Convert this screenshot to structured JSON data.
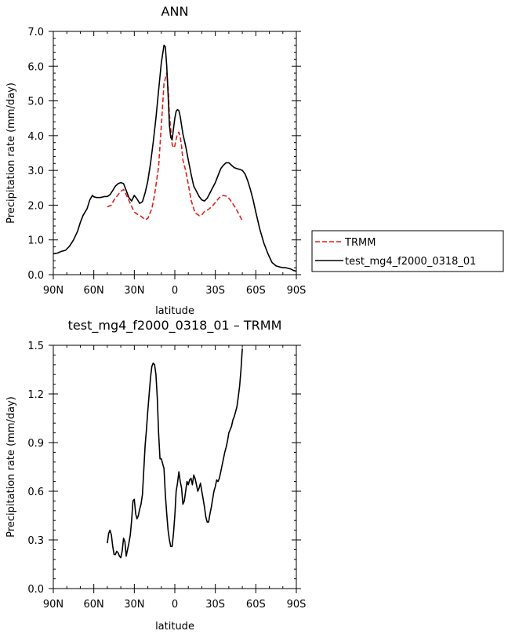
{
  "chart_data": [
    {
      "type": "line",
      "title": "ANN",
      "xlabel": "latitude",
      "ylabel": "Precipitation rate (mm/day)",
      "xlim": [
        90,
        -90
      ],
      "ylim": [
        0,
        7
      ],
      "x_direction": "north-to-south",
      "xticks": [
        90,
        60,
        30,
        0,
        -30,
        -60,
        -90
      ],
      "xtick_labels": [
        "90N",
        "60N",
        "30N",
        "0",
        "30S",
        "60S",
        "90S"
      ],
      "yticks": [
        0,
        1,
        2,
        3,
        4,
        5,
        6,
        7
      ],
      "ytick_labels": [
        "0.0",
        "1.0",
        "2.0",
        "3.0",
        "4.0",
        "5.0",
        "6.0",
        "7.0"
      ],
      "grid": false,
      "legend_placement": "outside-right",
      "series": [
        {
          "name": "TRMM",
          "color": "#e0201c",
          "dash": "dashed",
          "x": [
            50,
            47,
            45,
            42,
            40,
            38,
            36,
            33,
            30,
            27,
            25,
            22,
            20,
            17,
            15,
            12,
            10,
            8,
            6,
            5,
            4,
            3,
            2,
            1,
            0,
            -1,
            -2,
            -3,
            -4,
            -5,
            -6,
            -8,
            -10,
            -12,
            -15,
            -18,
            -20,
            -22,
            -25,
            -28,
            -30,
            -33,
            -36,
            -39,
            -42,
            -45,
            -48,
            -50
          ],
          "values": [
            1.95,
            2.0,
            2.15,
            2.3,
            2.4,
            2.45,
            2.3,
            2.05,
            1.8,
            1.72,
            1.68,
            1.58,
            1.62,
            1.9,
            2.3,
            3.1,
            4.3,
            5.5,
            5.8,
            5.4,
            4.6,
            4.2,
            3.75,
            3.65,
            3.7,
            3.9,
            4.05,
            4.1,
            3.95,
            3.7,
            3.3,
            3.0,
            2.6,
            2.15,
            1.78,
            1.7,
            1.72,
            1.82,
            1.88,
            1.98,
            2.08,
            2.22,
            2.28,
            2.25,
            2.1,
            1.92,
            1.7,
            1.55
          ]
        },
        {
          "name": "test_mg4_f2000_0318_01",
          "color": "#000000",
          "dash": "solid",
          "x": [
            90,
            87,
            84,
            81,
            78,
            75,
            72,
            70,
            68,
            65,
            63,
            61,
            60,
            58,
            55,
            52,
            50,
            48,
            46,
            44,
            42,
            40,
            38,
            36,
            34,
            32,
            30,
            28,
            26,
            24,
            22,
            20,
            18,
            16,
            14,
            12,
            10,
            8,
            7,
            6,
            5,
            4,
            3,
            2,
            1,
            0,
            -1,
            -2,
            -3,
            -4,
            -5,
            -6,
            -8,
            -10,
            -12,
            -14,
            -16,
            -18,
            -20,
            -22,
            -24,
            -26,
            -28,
            -30,
            -32,
            -34,
            -36,
            -38,
            -40,
            -42,
            -44,
            -46,
            -48,
            -50,
            -52,
            -54,
            -56,
            -58,
            -60,
            -63,
            -66,
            -69,
            -72,
            -75,
            -78,
            -80,
            -82,
            -84,
            -86,
            -88,
            -90
          ],
          "values": [
            0.6,
            0.62,
            0.67,
            0.7,
            0.82,
            1.0,
            1.25,
            1.5,
            1.7,
            1.9,
            2.15,
            2.28,
            2.24,
            2.22,
            2.22,
            2.25,
            2.25,
            2.3,
            2.42,
            2.55,
            2.62,
            2.65,
            2.62,
            2.42,
            2.22,
            2.12,
            2.28,
            2.18,
            2.05,
            2.1,
            2.35,
            2.7,
            3.2,
            3.8,
            4.5,
            5.3,
            6.1,
            6.6,
            6.55,
            6.0,
            5.2,
            4.3,
            3.95,
            3.88,
            4.2,
            4.5,
            4.7,
            4.75,
            4.72,
            4.55,
            4.3,
            4.05,
            3.7,
            3.3,
            2.9,
            2.55,
            2.4,
            2.25,
            2.15,
            2.12,
            2.2,
            2.35,
            2.5,
            2.65,
            2.85,
            3.05,
            3.15,
            3.22,
            3.22,
            3.15,
            3.08,
            3.05,
            3.03,
            3.0,
            2.9,
            2.7,
            2.45,
            2.15,
            1.8,
            1.3,
            0.9,
            0.6,
            0.35,
            0.25,
            0.22,
            0.2,
            0.2,
            0.18,
            0.16,
            0.12,
            0.1
          ]
        }
      ]
    },
    {
      "type": "line",
      "title": "test_mg4_f2000_0318_01 – TRMM",
      "xlabel": "latitude",
      "ylabel": "Precipitation rate (mm/day)",
      "xlim": [
        90,
        -90
      ],
      "ylim": [
        0,
        1.5
      ],
      "x_direction": "north-to-south",
      "xticks": [
        90,
        60,
        30,
        0,
        -30,
        -60,
        -90
      ],
      "xtick_labels": [
        "90N",
        "60N",
        "30N",
        "0",
        "30S",
        "60S",
        "90S"
      ],
      "yticks": [
        0,
        0.3,
        0.6,
        0.9,
        1.2,
        1.5
      ],
      "ytick_labels": [
        "0.0",
        "0.3",
        "0.6",
        "0.9",
        "1.2",
        "1.5"
      ],
      "grid": false,
      "series": [
        {
          "color": "#000000",
          "dash": "solid",
          "x": [
            50,
            49,
            48,
            47,
            46,
            45,
            44,
            43,
            42,
            41,
            40,
            39,
            38,
            37,
            36,
            35,
            34,
            33,
            32,
            31,
            30,
            29,
            28,
            27,
            26,
            25,
            24,
            23,
            22,
            21,
            20,
            19,
            18,
            17,
            16,
            15,
            14,
            13,
            12,
            11,
            10,
            9,
            8,
            7,
            6,
            5,
            4,
            3,
            2,
            1,
            0,
            -1,
            -2,
            -3,
            -4,
            -5,
            -6,
            -7,
            -8,
            -9,
            -10,
            -11,
            -12,
            -13,
            -14,
            -15,
            -16,
            -17,
            -18,
            -19,
            -20,
            -21,
            -22,
            -23,
            -24,
            -25,
            -26,
            -27,
            -28,
            -29,
            -30,
            -31,
            -32,
            -33,
            -34,
            -35,
            -36,
            -37,
            -38,
            -39,
            -40,
            -41,
            -42,
            -43,
            -44,
            -45,
            -46,
            -47,
            -48,
            -49,
            -50
          ],
          "values": [
            0.28,
            0.34,
            0.36,
            0.33,
            0.26,
            0.21,
            0.21,
            0.23,
            0.22,
            0.2,
            0.19,
            0.23,
            0.31,
            0.29,
            0.2,
            0.24,
            0.28,
            0.33,
            0.42,
            0.54,
            0.55,
            0.46,
            0.43,
            0.45,
            0.49,
            0.52,
            0.58,
            0.73,
            0.88,
            0.98,
            1.1,
            1.2,
            1.3,
            1.37,
            1.39,
            1.38,
            1.32,
            1.18,
            0.96,
            0.8,
            0.8,
            0.77,
            0.74,
            0.58,
            0.46,
            0.36,
            0.3,
            0.26,
            0.26,
            0.34,
            0.45,
            0.6,
            0.65,
            0.72,
            0.66,
            0.62,
            0.52,
            0.54,
            0.6,
            0.66,
            0.64,
            0.67,
            0.68,
            0.64,
            0.7,
            0.68,
            0.64,
            0.6,
            0.62,
            0.65,
            0.6,
            0.55,
            0.5,
            0.44,
            0.41,
            0.41,
            0.46,
            0.5,
            0.55,
            0.6,
            0.63,
            0.67,
            0.66,
            0.68,
            0.72,
            0.76,
            0.8,
            0.84,
            0.87,
            0.91,
            0.96,
            0.98,
            1.0,
            1.04,
            1.06,
            1.09,
            1.12,
            1.18,
            1.25,
            1.35,
            1.48
          ]
        }
      ]
    }
  ]
}
